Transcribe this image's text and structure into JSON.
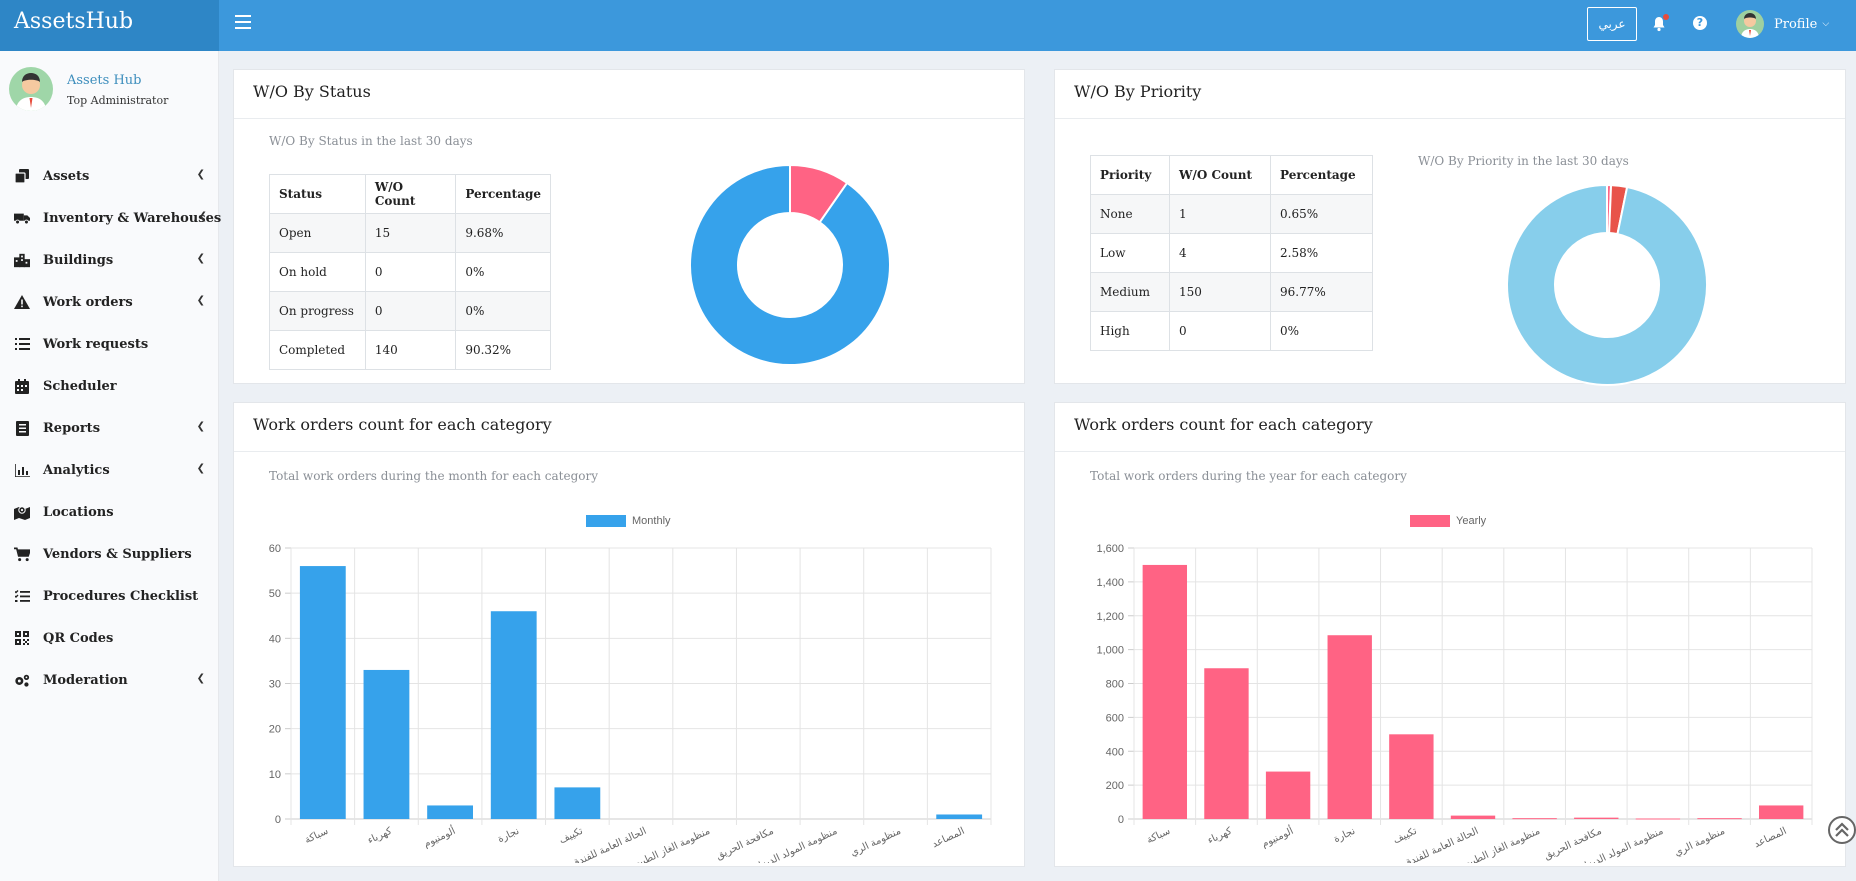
{
  "app": {
    "brand": "AssetsHub"
  },
  "topbar": {
    "lang_label": "عربي",
    "help_label": "?",
    "profile_label": "Profile"
  },
  "user": {
    "name": "Assets Hub",
    "role": "Top Administrator"
  },
  "sidebar": {
    "items": [
      {
        "label": "Assets",
        "icon": "copy-icon",
        "has_chevron": true
      },
      {
        "label": "Inventory & Warehouses",
        "icon": "truck-icon",
        "has_chevron": true
      },
      {
        "label": "Buildings",
        "icon": "building-icon",
        "has_chevron": true
      },
      {
        "label": "Work orders",
        "icon": "warning-icon",
        "has_chevron": true
      },
      {
        "label": "Work requests",
        "icon": "list-icon",
        "has_chevron": false
      },
      {
        "label": "Scheduler",
        "icon": "calendar-icon",
        "has_chevron": false
      },
      {
        "label": "Reports",
        "icon": "report-icon",
        "has_chevron": true
      },
      {
        "label": "Analytics",
        "icon": "bar-chart-icon",
        "has_chevron": true
      },
      {
        "label": "Locations",
        "icon": "map-icon",
        "has_chevron": false
      },
      {
        "label": "Vendors & Suppliers",
        "icon": "cart-icon",
        "has_chevron": false
      },
      {
        "label": "Procedures Checklist",
        "icon": "checklist-icon",
        "has_chevron": false
      },
      {
        "label": "QR Codes",
        "icon": "qrcode-icon",
        "has_chevron": false
      },
      {
        "label": "Moderation",
        "icon": "cogs-icon",
        "has_chevron": true
      }
    ]
  },
  "status_panel": {
    "title": "W/O By Status",
    "subtitle": "W/O By Status in the last 30 days",
    "headers": [
      "Status",
      "W/O Count",
      "Percentage"
    ],
    "rows": [
      {
        "status": "Open",
        "count": "15",
        "pct": "9.68%"
      },
      {
        "status": "On hold",
        "count": "0",
        "pct": "0%"
      },
      {
        "status": "On progress",
        "count": "0",
        "pct": "0%"
      },
      {
        "status": "Completed",
        "count": "140",
        "pct": "90.32%"
      }
    ]
  },
  "priority_panel": {
    "title": "W/O By Priority",
    "subtitle": "W/O By Priority in the last 30 days",
    "headers": [
      "Priority",
      "W/O Count",
      "Percentage"
    ],
    "rows": [
      {
        "priority": "None",
        "count": "1",
        "pct": "0.65%"
      },
      {
        "priority": "Low",
        "count": "4",
        "pct": "2.58%"
      },
      {
        "priority": "Medium",
        "count": "150",
        "pct": "96.77%"
      },
      {
        "priority": "High",
        "count": "0",
        "pct": "0%"
      }
    ]
  },
  "monthly_panel": {
    "title": "Work orders count for each category",
    "subtitle": "Total work orders during the month for each category"
  },
  "yearly_panel": {
    "title": "Work orders count for each category",
    "subtitle": "Total work orders during the year for each category"
  },
  "chart_data": [
    {
      "type": "pie",
      "variant": "doughnut",
      "labels": [
        "Open",
        "On hold",
        "On progress",
        "Completed"
      ],
      "values": [
        15,
        0,
        0,
        140
      ],
      "colors": [
        "#ff6384",
        "#ffcd56",
        "#9966ff",
        "#36a2eb"
      ]
    },
    {
      "type": "pie",
      "variant": "doughnut",
      "labels": [
        "None",
        "Low",
        "Medium",
        "High"
      ],
      "values": [
        1,
        4,
        150,
        0
      ],
      "colors": [
        "#ff6384",
        "#e8534a",
        "#87ceeb",
        "#ffcd56"
      ]
    },
    {
      "type": "bar",
      "categories": [
        "سباكة",
        "كهرباء",
        "ألومنيوم",
        "نجارة",
        "تكييف",
        "الحالة العامة للفندق",
        "منظومة الغاز الطبيعي",
        "مكافحة الحريق",
        "منظومة المولد الديزل",
        "منظومة الري",
        "المصاعد"
      ],
      "series": [
        {
          "name": "Monthly",
          "values": [
            56,
            33,
            3,
            46,
            7,
            0,
            0,
            0,
            0,
            0,
            1
          ],
          "color": "#36a2eb"
        }
      ],
      "ylim": [
        0,
        60
      ],
      "yticks": [
        0,
        10,
        20,
        30,
        40,
        50,
        60
      ],
      "ytick_labels": [
        "0",
        "10",
        "20",
        "30",
        "40",
        "50",
        "60"
      ],
      "grid": true,
      "legend": "top"
    },
    {
      "type": "bar",
      "categories": [
        "سباكة",
        "كهرباء",
        "ألومنيوم",
        "نجارة",
        "تكييف",
        "الحالة العامة للفندق",
        "منظومة الغاز الطبيعي",
        "مكافحة الحريق",
        "منظومة المولد الديزل",
        "منظومة الري",
        "المصاعد"
      ],
      "series": [
        {
          "name": "Yearly",
          "values": [
            1500,
            890,
            280,
            1085,
            500,
            20,
            5,
            8,
            3,
            5,
            80
          ],
          "color": "#ff6384"
        }
      ],
      "ylim": [
        0,
        1600
      ],
      "yticks": [
        0,
        200,
        400,
        600,
        800,
        1000,
        1200,
        1400,
        1600
      ],
      "ytick_labels": [
        "0",
        "200",
        "400",
        "600",
        "800",
        "1,000",
        "1,200",
        "1,400",
        "1,600"
      ],
      "grid": true,
      "legend": "top"
    }
  ]
}
